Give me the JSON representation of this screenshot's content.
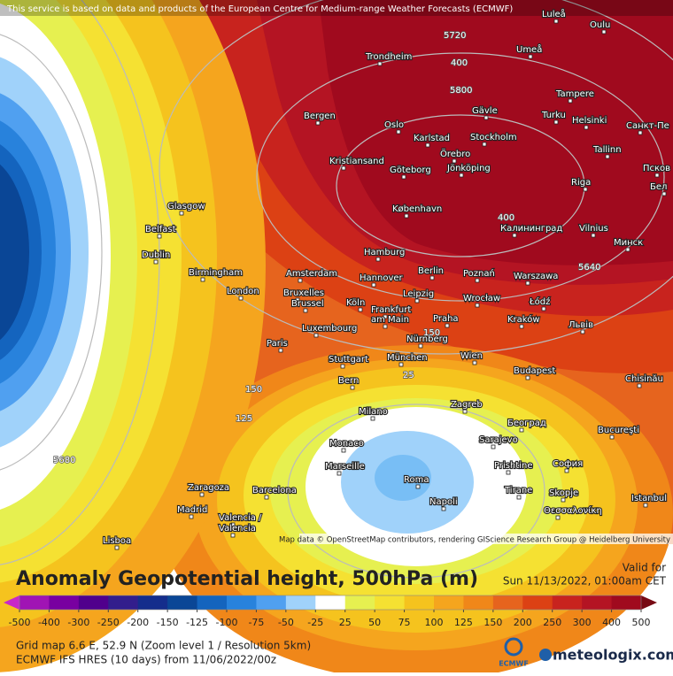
{
  "header": {
    "notice": "This service is based on data and products of the European Centre for Medium-range Weather Forecasts (ECMWF)"
  },
  "map": {
    "cities": [
      "Luleå",
      "Oulu",
      "Umeå",
      "Trondheim",
      "Tampere",
      "Bergen",
      "Gävle",
      "Turku",
      "Helsinki",
      "Санкт-Пе",
      "Oslo",
      "Karlstad",
      "Stockholm",
      "Örebro",
      "Kristiansand",
      "Göteborg",
      "Jönköping",
      "Tallinn",
      "Псков",
      "Riga",
      "Бел",
      "København",
      "Калининград",
      "Vilnius",
      "Минск",
      "Glasgow",
      "Belfast",
      "Dublin",
      "Hamburg",
      "Birmingham",
      "Amsterdam",
      "Berlin",
      "Poznań",
      "Warszawa",
      "London",
      "Hannover",
      "Bruxelles",
      "Brussel",
      "Köln",
      "Leipzig",
      "Wrocław",
      "Łódź",
      "Frankfurt",
      "am Main",
      "Praha",
      "Kraków",
      "Львів",
      "Luxembourg",
      "Nürnberg",
      "Paris",
      "Stuttgart",
      "München",
      "Wien",
      "Budapest",
      "Chisinău",
      "Bern",
      "Zagreb",
      "Milano",
      "Београд",
      "Bucureşti",
      "Monaco",
      "Sarajevo",
      "Marseille",
      "Prishtine",
      "София",
      "Zaragoza",
      "Barcelona",
      "Roma",
      "Tirane",
      "Skopje",
      "Madrid",
      "Napoli",
      "Istanbul",
      "Valencia /",
      "Valencia",
      "Θεσσαλονίκη",
      "Lisboa"
    ],
    "contour_labels": [
      "5720",
      "400",
      "5800",
      "400",
      "5640",
      "150",
      "125",
      "5680",
      "150",
      "25"
    ],
    "attribution": "Map data © OpenStreetMap contributors, rendering GIScience Research Group @ Heidelberg University"
  },
  "legend": {
    "title": "Anomaly Geopotential height, 500hPa (m)",
    "valid_label": "Valid for",
    "valid_time": "Sun 11/13/2022, 01:00am CET",
    "ticks": [
      -500,
      -400,
      -300,
      -250,
      -200,
      -150,
      -125,
      -100,
      -75,
      -50,
      -25,
      25,
      50,
      75,
      100,
      125,
      150,
      200,
      250,
      300,
      400,
      500
    ],
    "colors": [
      "#c828c8",
      "#a014b4",
      "#7800a0",
      "#50008c",
      "#321e8c",
      "#142d8c",
      "#0a4696",
      "#1464be",
      "#2882dc",
      "#50a0f0",
      "#a0d2fa",
      "#ffffff",
      "#e6f050",
      "#f5e132",
      "#f5c31e",
      "#f5a51e",
      "#f08719",
      "#e6641e",
      "#dc4114",
      "#c8231e",
      "#b41423",
      "#a00a1e",
      "#780a14"
    ]
  },
  "footer": {
    "grid_info": "Grid map 6.6 E, 52.9 N (Zoom level 1 / Resolution 5km)",
    "model_info": "ECMWF IFS HRES (10 days) from 11/06/2022/00z",
    "ecmwf_logo": "ECMWF",
    "brand": "meteologix.com"
  }
}
